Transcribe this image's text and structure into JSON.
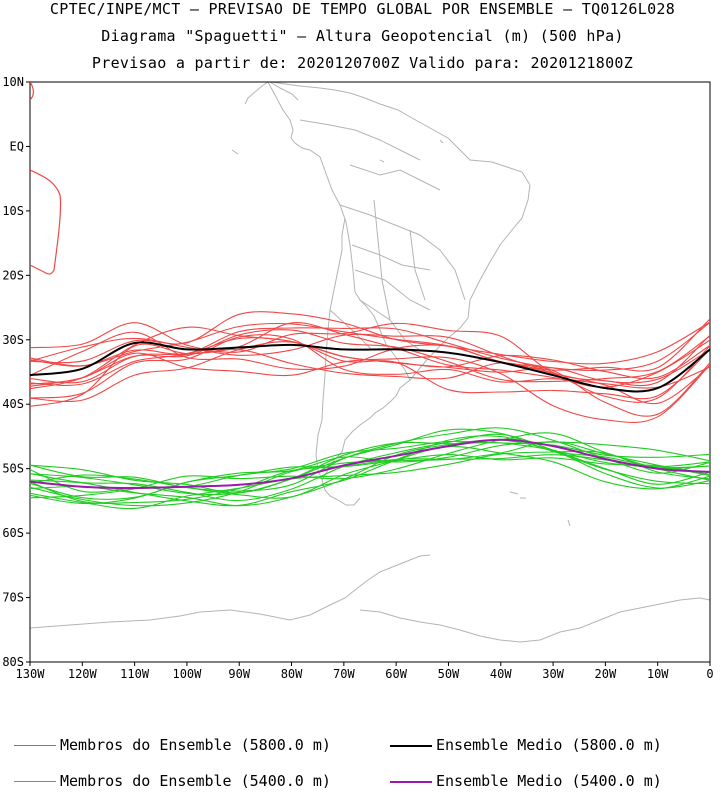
{
  "header": {
    "line1": "CPTEC/INPE/MCT – PREVISAO DE TEMPO GLOBAL POR ENSEMBLE – TQ0126L028",
    "line2": "Diagrama \"Spaguetti\" – Altura Geopotencial (m) (500 hPa)",
    "line3": "Previsao a partir de: 2020120700Z  Valido para: 2020121800Z"
  },
  "axes": {
    "lat_ticks": [
      "10N",
      "EQ",
      "10S",
      "20S",
      "30S",
      "40S",
      "50S",
      "60S",
      "70S",
      "80S"
    ],
    "lon_ticks": [
      "130W",
      "120W",
      "110W",
      "100W",
      "90W",
      "80W",
      "70W",
      "60W",
      "50W",
      "40W",
      "30W",
      "20W",
      "10W",
      "0"
    ],
    "lat_range": [
      -80,
      10
    ],
    "lon_range": [
      -130,
      0
    ]
  },
  "legend": {
    "member_5800": "Membros do Ensemble (5800.0 m)",
    "mean_5800": "Ensemble Medio (5800.0 m)",
    "member_5400": "Membros do Ensemble (5400.0 m)",
    "mean_5400": "Ensemble Medio (5400.0 m)"
  },
  "colors": {
    "member_5800": "#f04848",
    "mean_5800": "#000000",
    "member_5400": "#22cc22",
    "mean_5400": "#9a1aaa",
    "coast": "#b4b4b4"
  },
  "chart_data": {
    "type": "line",
    "x": [
      -130,
      -120,
      -110,
      -100,
      -90,
      -80,
      -70,
      -60,
      -50,
      -40,
      -30,
      -20,
      -10,
      0
    ],
    "series_mean_5800": [
      -35.5,
      -34.5,
      -30.5,
      -31.5,
      -31.2,
      -30.8,
      -31.5,
      -31.5,
      -32.0,
      -33.5,
      -35.5,
      -37.5,
      -37.5,
      -31.5
    ],
    "series_mean_5400": [
      -52.0,
      -52.8,
      -53.0,
      -52.8,
      -52.5,
      -51.5,
      -49.5,
      -48.0,
      -46.5,
      -45.5,
      -46.5,
      -48.5,
      -50.0,
      -50.5
    ]
  }
}
